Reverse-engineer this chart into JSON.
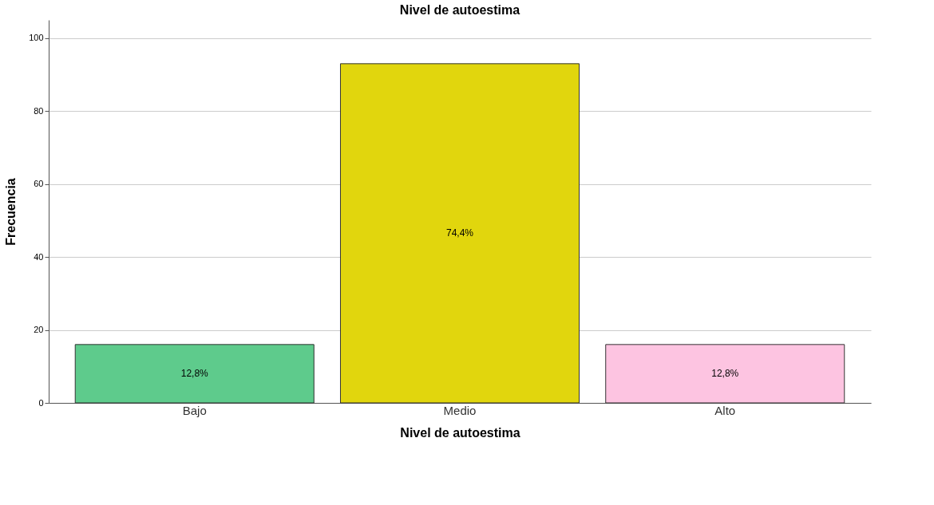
{
  "chart_data": {
    "type": "bar",
    "title": "Nivel de autoestima",
    "xlabel": "Nivel de autoestima",
    "ylabel": "Frecuencia",
    "categories": [
      "Bajo",
      "Medio",
      "Alto"
    ],
    "values": [
      16,
      93,
      16
    ],
    "colors": [
      "#5ecb8c",
      "#e1d60d",
      "#fdc4e1"
    ],
    "annotations": [
      "12,8%",
      "74,4%",
      "12,8%"
    ],
    "ylim": [
      0,
      105
    ],
    "yticks": [
      0,
      20,
      40,
      60,
      80,
      100
    ],
    "grid": "y"
  }
}
